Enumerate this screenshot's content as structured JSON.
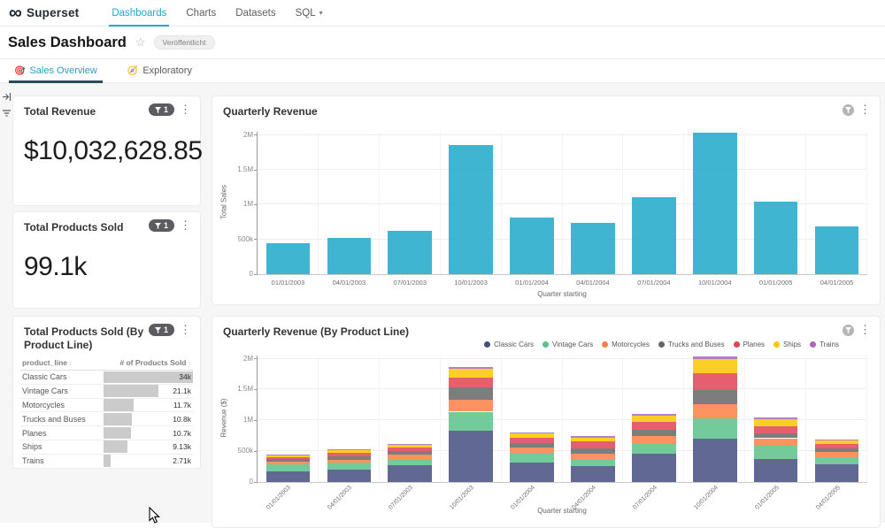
{
  "brand": {
    "name": "Superset"
  },
  "nav": {
    "items": [
      {
        "label": "Dashboards",
        "active": true,
        "caret": false
      },
      {
        "label": "Charts",
        "active": false,
        "caret": false
      },
      {
        "label": "Datasets",
        "active": false,
        "caret": false
      },
      {
        "label": "SQL",
        "active": false,
        "caret": true
      }
    ]
  },
  "header": {
    "title": "Sales Dashboard",
    "published_badge": "Veröffentlicht"
  },
  "tabs": [
    {
      "emoji": "🎯",
      "label": "Sales Overview",
      "active": true
    },
    {
      "emoji": "🧭",
      "label": "Exploratory",
      "active": false
    }
  ],
  "colors": {
    "accent": "#20A7C9",
    "single_bar": "#1FA8C9",
    "table_bar": "#CBCBCB",
    "filter_pill_bg": "#5B5B61"
  },
  "cards": {
    "total_revenue": {
      "title": "Total Revenue",
      "filter_count": "1",
      "value": "$10,032,628.85"
    },
    "total_products_sold": {
      "title": "Total Products Sold",
      "filter_count": "1",
      "value": "99.1k"
    },
    "products_by_line": {
      "title": "Total Products Sold (By Product Line)",
      "filter_count": "1",
      "columns": [
        {
          "label": "product_line"
        },
        {
          "label": "# of Products Sold"
        }
      ],
      "rows": [
        {
          "product_line": "Classic Cars",
          "value": "34k",
          "bar_pct": 100
        },
        {
          "product_line": "Vintage Cars",
          "value": "21.1k",
          "bar_pct": 62
        },
        {
          "product_line": "Motorcycles",
          "value": "11.7k",
          "bar_pct": 34
        },
        {
          "product_line": "Trucks and Buses",
          "value": "10.8k",
          "bar_pct": 32
        },
        {
          "product_line": "Planes",
          "value": "10.7k",
          "bar_pct": 31
        },
        {
          "product_line": "Ships",
          "value": "9.13k",
          "bar_pct": 27
        },
        {
          "product_line": "Trains",
          "value": "2.71k",
          "bar_pct": 8
        }
      ]
    }
  },
  "chart_data": [
    {
      "type": "bar",
      "title": "Quarterly Revenue",
      "xlabel": "Quarter starting",
      "ylabel": "Total Sales",
      "ylim": [
        0,
        2050000
      ],
      "grid": true,
      "yticks": [
        {
          "v": 0,
          "label": "0"
        },
        {
          "v": 500000,
          "label": "500k"
        },
        {
          "v": 1000000,
          "label": "1M"
        },
        {
          "v": 1500000,
          "label": "1.5M"
        },
        {
          "v": 2000000,
          "label": "2M"
        }
      ],
      "categories": [
        "01/01/2003",
        "04/01/2003",
        "07/01/2003",
        "10/01/2003",
        "01/01/2004",
        "04/01/2004",
        "07/01/2004",
        "10/01/2004",
        "01/01/2005",
        "04/01/2005"
      ],
      "values": [
        445000,
        525000,
        620000,
        1865000,
        810000,
        745000,
        1105000,
        2040000,
        1050000,
        690000
      ],
      "bar_color": "#1FA8C9"
    },
    {
      "type": "stacked-bar",
      "title": "Quarterly Revenue (By Product Line)",
      "xlabel": "Quarter starting",
      "ylabel": "Revenue ($)",
      "ylim": [
        0,
        2050000
      ],
      "grid": true,
      "legend_position": "top-right",
      "yticks": [
        {
          "v": 0,
          "label": "0"
        },
        {
          "v": 500000,
          "label": "500k"
        },
        {
          "v": 1000000,
          "label": "1M"
        },
        {
          "v": 1500000,
          "label": "1.5M"
        },
        {
          "v": 2000000,
          "label": "2M"
        }
      ],
      "categories": [
        "01/01/2003",
        "04/01/2003",
        "07/01/2003",
        "10/01/2003",
        "01/01/2004",
        "04/01/2004",
        "07/01/2004",
        "10/01/2004",
        "01/01/2005",
        "04/01/2005"
      ],
      "series": [
        {
          "name": "Classic Cars",
          "color": "#454E7E",
          "values": [
            170000,
            200000,
            270000,
            830000,
            320000,
            260000,
            460000,
            700000,
            380000,
            290000
          ]
        },
        {
          "name": "Vintage Cars",
          "color": "#5AC189",
          "values": [
            120000,
            110000,
            110000,
            310000,
            150000,
            120000,
            170000,
            330000,
            210000,
            110000
          ]
        },
        {
          "name": "Motorcycles",
          "color": "#FF7F44",
          "values": [
            45000,
            55000,
            70000,
            200000,
            90000,
            80000,
            120000,
            230000,
            120000,
            90000
          ]
        },
        {
          "name": "Trucks and Buses",
          "color": "#666666",
          "values": [
            35000,
            45000,
            55000,
            190000,
            70000,
            80000,
            100000,
            230000,
            80000,
            60000
          ]
        },
        {
          "name": "Planes",
          "color": "#E04355",
          "values": [
            35000,
            60000,
            55000,
            160000,
            80000,
            120000,
            130000,
            280000,
            120000,
            70000
          ]
        },
        {
          "name": "Ships",
          "color": "#FCC700",
          "values": [
            30000,
            40000,
            45000,
            140000,
            80000,
            60000,
            90000,
            230000,
            110000,
            50000
          ]
        },
        {
          "name": "Trains",
          "color": "#A868B8",
          "values": [
            10000,
            15000,
            15000,
            35000,
            20000,
            25000,
            35000,
            40000,
            30000,
            20000
          ]
        }
      ]
    }
  ]
}
